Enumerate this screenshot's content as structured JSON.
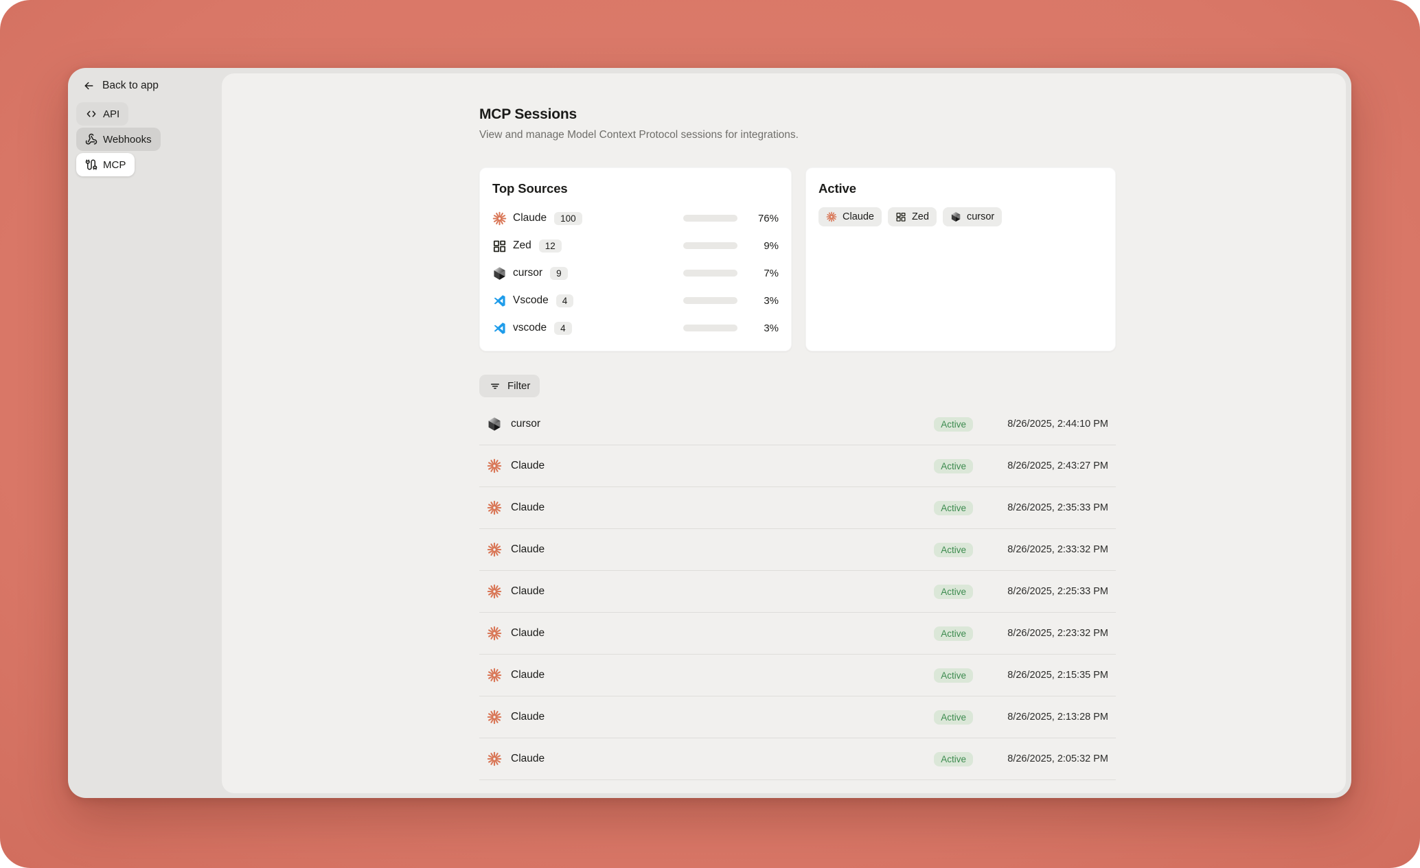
{
  "colors": {
    "canvas": "#d97767",
    "canvas-light": "#dd7e6d",
    "canvas-dark": "#d16e5e",
    "window-bg": "#e4e3e1",
    "panel-bg": "#f1f0ee",
    "card-bg": "#ffffff",
    "pill-bg": "#dcdbd9",
    "pill-hover-bg": "#d2d1cf",
    "chip-bg": "#ececea",
    "filter-bg": "#e2e1df",
    "track-bg": "#e9e8e5",
    "accent-bar": "#c05a4b",
    "claude": "#d97757",
    "vscode-blue": "#1e9cea",
    "badge-bg": "#dbe7d8",
    "badge-text": "#3d8b4f",
    "divider": "#deddda",
    "text": "#1b1b19",
    "muted": "#6f6e6a"
  },
  "sidebar": {
    "back_label": "Back to app",
    "items": [
      {
        "label": "API",
        "icon": "code-brackets-icon",
        "state": "default"
      },
      {
        "label": "Webhooks",
        "icon": "webhook-icon",
        "state": "shade"
      },
      {
        "label": "MCP",
        "icon": "cable-icon",
        "state": "active"
      }
    ]
  },
  "header": {
    "title": "MCP Sessions",
    "subtitle": "View and manage Model Context Protocol sessions for integrations."
  },
  "top_sources": {
    "title": "Top Sources",
    "rows": [
      {
        "name": "Claude",
        "count": "100",
        "percent_label": "76%",
        "percent": 76,
        "icon": "claude-icon"
      },
      {
        "name": "Zed",
        "count": "12",
        "percent_label": "9%",
        "percent": 9,
        "icon": "zed-icon"
      },
      {
        "name": "cursor",
        "count": "9",
        "percent_label": "7%",
        "percent": 7,
        "icon": "cursor-icon"
      },
      {
        "name": "Vscode",
        "count": "4",
        "percent_label": "3%",
        "percent": 3,
        "icon": "vscode-icon"
      },
      {
        "name": "vscode",
        "count": "4",
        "percent_label": "3%",
        "percent": 3,
        "icon": "vscode-icon"
      }
    ]
  },
  "active_card": {
    "title": "Active",
    "chips": [
      {
        "name": "Claude",
        "icon": "claude-icon"
      },
      {
        "name": "Zed",
        "icon": "zed-icon"
      },
      {
        "name": "cursor",
        "icon": "cursor-icon"
      }
    ]
  },
  "filter": {
    "label": "Filter",
    "icon": "filter-lines-icon"
  },
  "sessions": [
    {
      "name": "cursor",
      "icon": "cursor-icon",
      "status": "Active",
      "timestamp": "8/26/2025, 2:44:10 PM"
    },
    {
      "name": "Claude",
      "icon": "claude-icon",
      "status": "Active",
      "timestamp": "8/26/2025, 2:43:27 PM"
    },
    {
      "name": "Claude",
      "icon": "claude-icon",
      "status": "Active",
      "timestamp": "8/26/2025, 2:35:33 PM"
    },
    {
      "name": "Claude",
      "icon": "claude-icon",
      "status": "Active",
      "timestamp": "8/26/2025, 2:33:32 PM"
    },
    {
      "name": "Claude",
      "icon": "claude-icon",
      "status": "Active",
      "timestamp": "8/26/2025, 2:25:33 PM"
    },
    {
      "name": "Claude",
      "icon": "claude-icon",
      "status": "Active",
      "timestamp": "8/26/2025, 2:23:32 PM"
    },
    {
      "name": "Claude",
      "icon": "claude-icon",
      "status": "Active",
      "timestamp": "8/26/2025, 2:15:35 PM"
    },
    {
      "name": "Claude",
      "icon": "claude-icon",
      "status": "Active",
      "timestamp": "8/26/2025, 2:13:28 PM"
    },
    {
      "name": "Claude",
      "icon": "claude-icon",
      "status": "Active",
      "timestamp": "8/26/2025, 2:05:32 PM"
    }
  ]
}
